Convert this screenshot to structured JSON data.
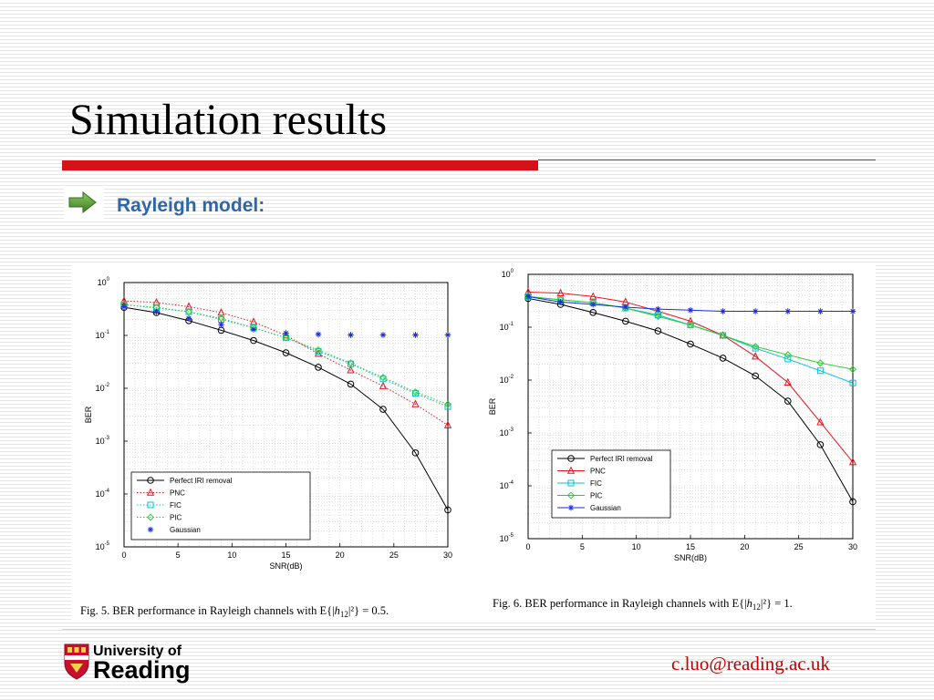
{
  "slide": {
    "title": "Simulation results",
    "subtitle": "Rayleigh model:",
    "email": "c.luo@reading.ac.uk",
    "logo": {
      "line1": "University of",
      "line2": "Reading"
    }
  },
  "colors": {
    "title_bar": "#d41318",
    "subtitle": "#2e67a8",
    "email": "#c00000",
    "bullet_arrow": "#5a9a3c"
  },
  "chart_data": [
    {
      "type": "line",
      "title": "",
      "xlabel": "SNR(dB)",
      "ylabel": "BER",
      "yscale": "log",
      "xlim": [
        0,
        30
      ],
      "ylim": [
        1e-05,
        1
      ],
      "xticks": [
        "0",
        "5",
        "10",
        "15",
        "20",
        "25",
        "30"
      ],
      "yticks": [
        "10^0",
        "10^-1",
        "10^-2",
        "10^-3",
        "10^-4",
        "10^-5"
      ],
      "grid": true,
      "legend_position": "bottom-left",
      "caption_prefix": "Fig. 5.   BER performance in Rayleigh channels with E{|",
      "caption_var": "h",
      "caption_sub": "12",
      "caption_suffix": "|²} = 0.5.",
      "series": [
        {
          "name": "Perfect IRI removal",
          "color": "#000000",
          "marker": "circle",
          "line": "solid",
          "x": [
            0,
            3,
            6,
            9,
            12,
            15,
            18,
            21,
            24,
            27,
            30
          ],
          "values": [
            0.34,
            0.27,
            0.19,
            0.125,
            0.08,
            0.047,
            0.025,
            0.012,
            0.004,
            0.0006,
            5e-05
          ]
        },
        {
          "name": "PNC",
          "color": "#e8151b",
          "marker": "triangle",
          "line": "dotted",
          "x": [
            0,
            3,
            6,
            9,
            12,
            15,
            18,
            21,
            24,
            27,
            30
          ],
          "values": [
            0.45,
            0.42,
            0.35,
            0.27,
            0.18,
            0.1,
            0.045,
            0.022,
            0.011,
            0.005,
            0.002
          ]
        },
        {
          "name": "FIC",
          "color": "#00c0d8",
          "marker": "square",
          "line": "dotted",
          "x": [
            0,
            3,
            6,
            9,
            12,
            15,
            18,
            21,
            24,
            27,
            30
          ],
          "values": [
            0.38,
            0.33,
            0.28,
            0.2,
            0.14,
            0.09,
            0.05,
            0.029,
            0.015,
            0.008,
            0.0045
          ]
        },
        {
          "name": "PIC",
          "color": "#2ccc2c",
          "marker": "diamond",
          "line": "dotted",
          "x": [
            0,
            3,
            6,
            9,
            12,
            15,
            18,
            21,
            24,
            27,
            30
          ],
          "values": [
            0.38,
            0.34,
            0.28,
            0.21,
            0.14,
            0.09,
            0.053,
            0.03,
            0.016,
            0.0085,
            0.005
          ]
        },
        {
          "name": "Gaussian",
          "color": "#1a2ee0",
          "marker": "star",
          "line": "none",
          "x": [
            0,
            3,
            6,
            9,
            12,
            15,
            18,
            21,
            24,
            27,
            30
          ],
          "values": [
            0.35,
            0.28,
            0.21,
            0.16,
            0.13,
            0.11,
            0.105,
            0.102,
            0.102,
            0.102,
            0.102
          ]
        }
      ]
    },
    {
      "type": "line",
      "title": "",
      "xlabel": "SNR(dB)",
      "ylabel": "BER",
      "yscale": "log",
      "xlim": [
        0,
        30
      ],
      "ylim": [
        1e-05,
        1
      ],
      "xticks": [
        "0",
        "5",
        "10",
        "15",
        "20",
        "25",
        "30"
      ],
      "yticks": [
        "10^0",
        "10^-1",
        "10^-2",
        "10^-3",
        "10^-4",
        "10^-5"
      ],
      "grid": true,
      "legend_position": "bottom-left",
      "caption_prefix": "Fig. 6.   BER performance in Rayleigh channels with E{|",
      "caption_var": "h",
      "caption_sub": "12",
      "caption_suffix": "|²} = 1.",
      "series": [
        {
          "name": "Perfect IRI removal",
          "color": "#000000",
          "marker": "circle",
          "line": "solid",
          "x": [
            0,
            3,
            6,
            9,
            12,
            15,
            18,
            21,
            24,
            27,
            30
          ],
          "values": [
            0.35,
            0.27,
            0.19,
            0.13,
            0.085,
            0.048,
            0.026,
            0.012,
            0.004,
            0.0006,
            5e-05
          ]
        },
        {
          "name": "PNC",
          "color": "#e8151b",
          "marker": "triangle",
          "line": "solid",
          "x": [
            0,
            3,
            6,
            9,
            12,
            15,
            18,
            21,
            24,
            27,
            30
          ],
          "values": [
            0.46,
            0.44,
            0.38,
            0.3,
            0.2,
            0.13,
            0.07,
            0.028,
            0.009,
            0.0016,
            0.00028
          ]
        },
        {
          "name": "FIC",
          "color": "#00c0d8",
          "marker": "square",
          "line": "solid",
          "x": [
            0,
            3,
            6,
            9,
            12,
            15,
            18,
            21,
            24,
            27,
            30
          ],
          "values": [
            0.38,
            0.33,
            0.29,
            0.23,
            0.17,
            0.11,
            0.07,
            0.04,
            0.025,
            0.015,
            0.0088
          ]
        },
        {
          "name": "PIC",
          "color": "#2ccc2c",
          "marker": "diamond",
          "line": "solid",
          "x": [
            0,
            3,
            6,
            9,
            12,
            15,
            18,
            21,
            24,
            27,
            30
          ],
          "values": [
            0.38,
            0.33,
            0.29,
            0.23,
            0.16,
            0.11,
            0.07,
            0.043,
            0.03,
            0.021,
            0.016
          ]
        },
        {
          "name": "Gaussian",
          "color": "#1a2ee0",
          "marker": "star",
          "line": "solid",
          "x": [
            0,
            3,
            6,
            9,
            12,
            15,
            18,
            21,
            24,
            27,
            30
          ],
          "values": [
            0.38,
            0.3,
            0.27,
            0.24,
            0.22,
            0.21,
            0.2,
            0.2,
            0.2,
            0.2,
            0.2
          ]
        }
      ]
    }
  ]
}
